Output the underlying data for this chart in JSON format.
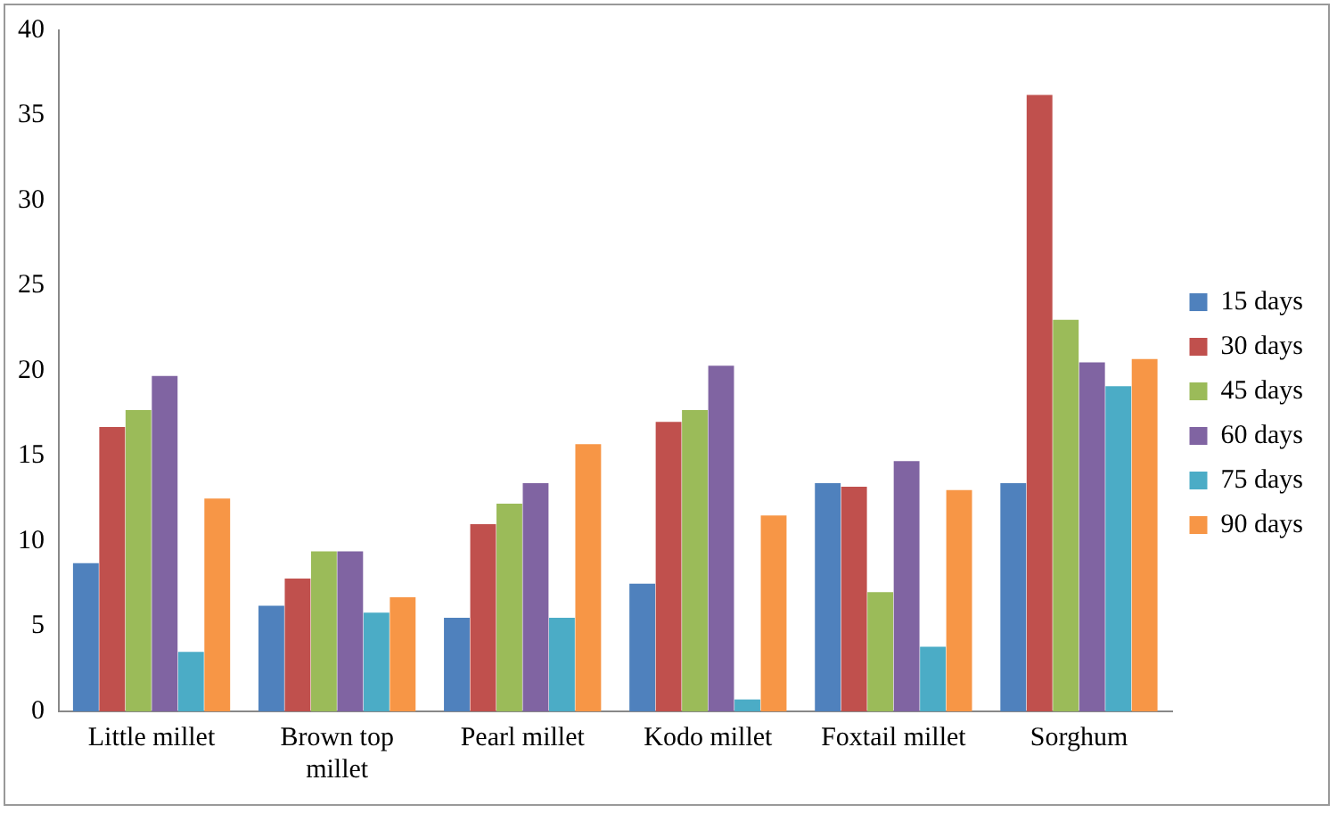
{
  "chart_data": {
    "type": "bar",
    "categories": [
      "Little millet",
      "Brown top millet",
      "Pearl millet",
      "Kodo millet",
      "Foxtail millet",
      "Sorghum"
    ],
    "series": [
      {
        "name": "15 days",
        "color": "#4f81bd",
        "values": [
          8.7,
          6.2,
          5.5,
          7.5,
          13.4,
          13.4
        ]
      },
      {
        "name": "30 days",
        "color": "#c0504d",
        "values": [
          16.7,
          7.8,
          11.0,
          17.0,
          13.2,
          36.2
        ]
      },
      {
        "name": "45 days",
        "color": "#9bbb59",
        "values": [
          17.7,
          9.4,
          12.2,
          17.7,
          7.0,
          23.0
        ]
      },
      {
        "name": "60 days",
        "color": "#8064a2",
        "values": [
          19.7,
          9.4,
          13.4,
          20.3,
          14.7,
          20.5
        ]
      },
      {
        "name": "75 days",
        "color": "#4bacc6",
        "values": [
          3.5,
          5.8,
          5.5,
          0.7,
          3.8,
          19.1
        ]
      },
      {
        "name": "90 days",
        "color": "#f79646",
        "values": [
          12.5,
          6.7,
          15.7,
          11.5,
          13.0,
          20.7
        ]
      }
    ],
    "ylim": [
      0,
      40
    ],
    "yticks": [
      0,
      5,
      10,
      15,
      20,
      25,
      30,
      35,
      40
    ],
    "grid": false,
    "legend": "right"
  }
}
